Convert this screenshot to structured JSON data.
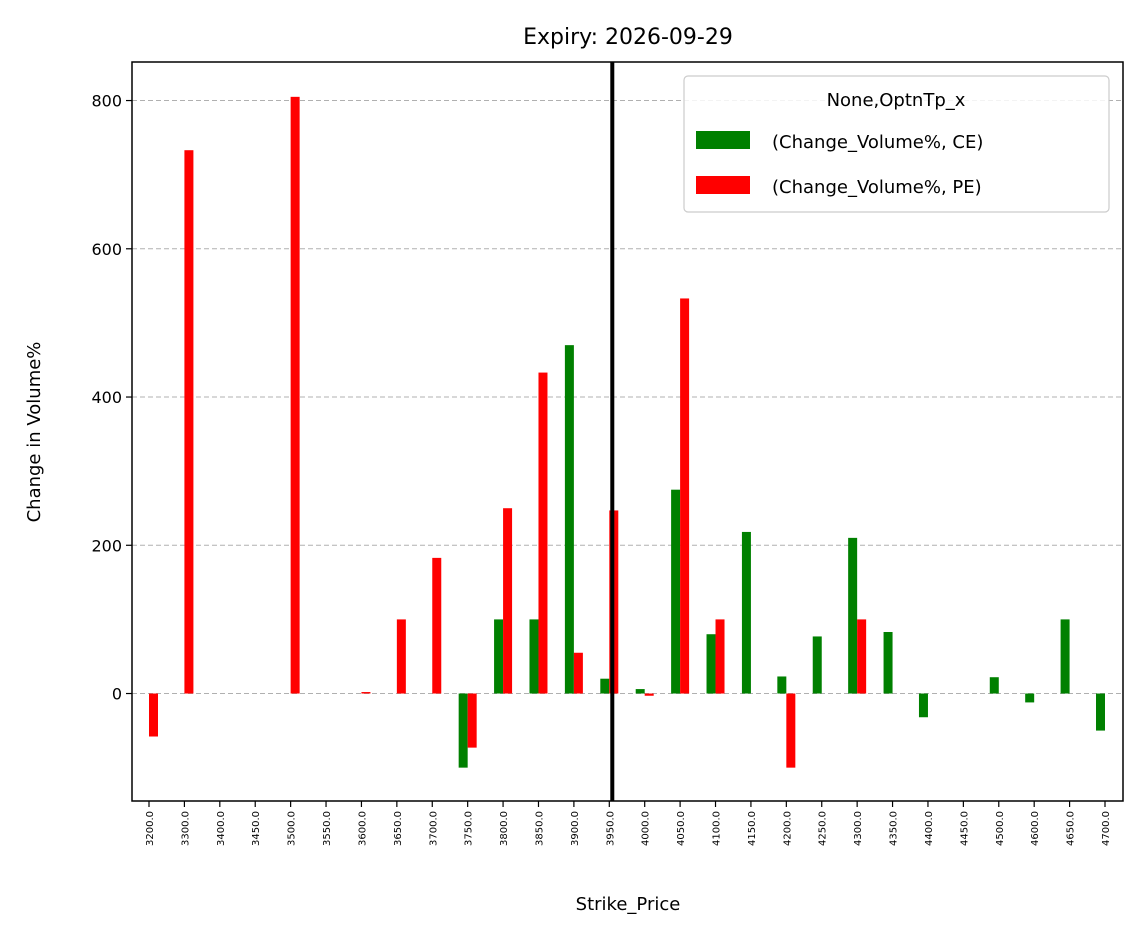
{
  "chart_data": {
    "type": "bar",
    "title": "Expiry: 2026-09-29",
    "xlabel": "Strike_Price",
    "ylabel": "Change in Volume%",
    "ylim": [
      -145,
      852
    ],
    "yticks": [
      0,
      200,
      400,
      600,
      800
    ],
    "grid": "horizontal dashed",
    "legend": {
      "title": "None,OptnTp_x",
      "placement": "top-right"
    },
    "categories": [
      "3200.0",
      "3300.0",
      "3400.0",
      "3450.0",
      "3500.0",
      "3550.0",
      "3600.0",
      "3650.0",
      "3700.0",
      "3750.0",
      "3800.0",
      "3850.0",
      "3900.0",
      "3950.0",
      "4000.0",
      "4050.0",
      "4100.0",
      "4150.0",
      "4200.0",
      "4250.0",
      "4300.0",
      "4350.0",
      "4400.0",
      "4450.0",
      "4500.0",
      "4600.0",
      "4650.0",
      "4700.0"
    ],
    "spot_line": {
      "category": "3950.0",
      "color": "#000000"
    },
    "series": [
      {
        "name": "(Change_Volume%, CE)",
        "color": "#008000",
        "values": [
          0,
          0,
          0,
          0,
          0,
          0,
          0,
          0,
          0,
          -100,
          100,
          100,
          470,
          20,
          6,
          275,
          80,
          218,
          23,
          77,
          210,
          83,
          -32,
          0,
          22,
          -12,
          100,
          -50
        ]
      },
      {
        "name": "(Change_Volume%, PE)",
        "color": "#ff0000",
        "values": [
          -58,
          733,
          0,
          0,
          805,
          0,
          2,
          100,
          183,
          -73,
          250,
          433,
          55,
          247,
          -3,
          533,
          100,
          0,
          -100,
          0,
          100,
          0,
          0,
          0,
          0,
          0,
          0,
          0
        ]
      }
    ]
  }
}
